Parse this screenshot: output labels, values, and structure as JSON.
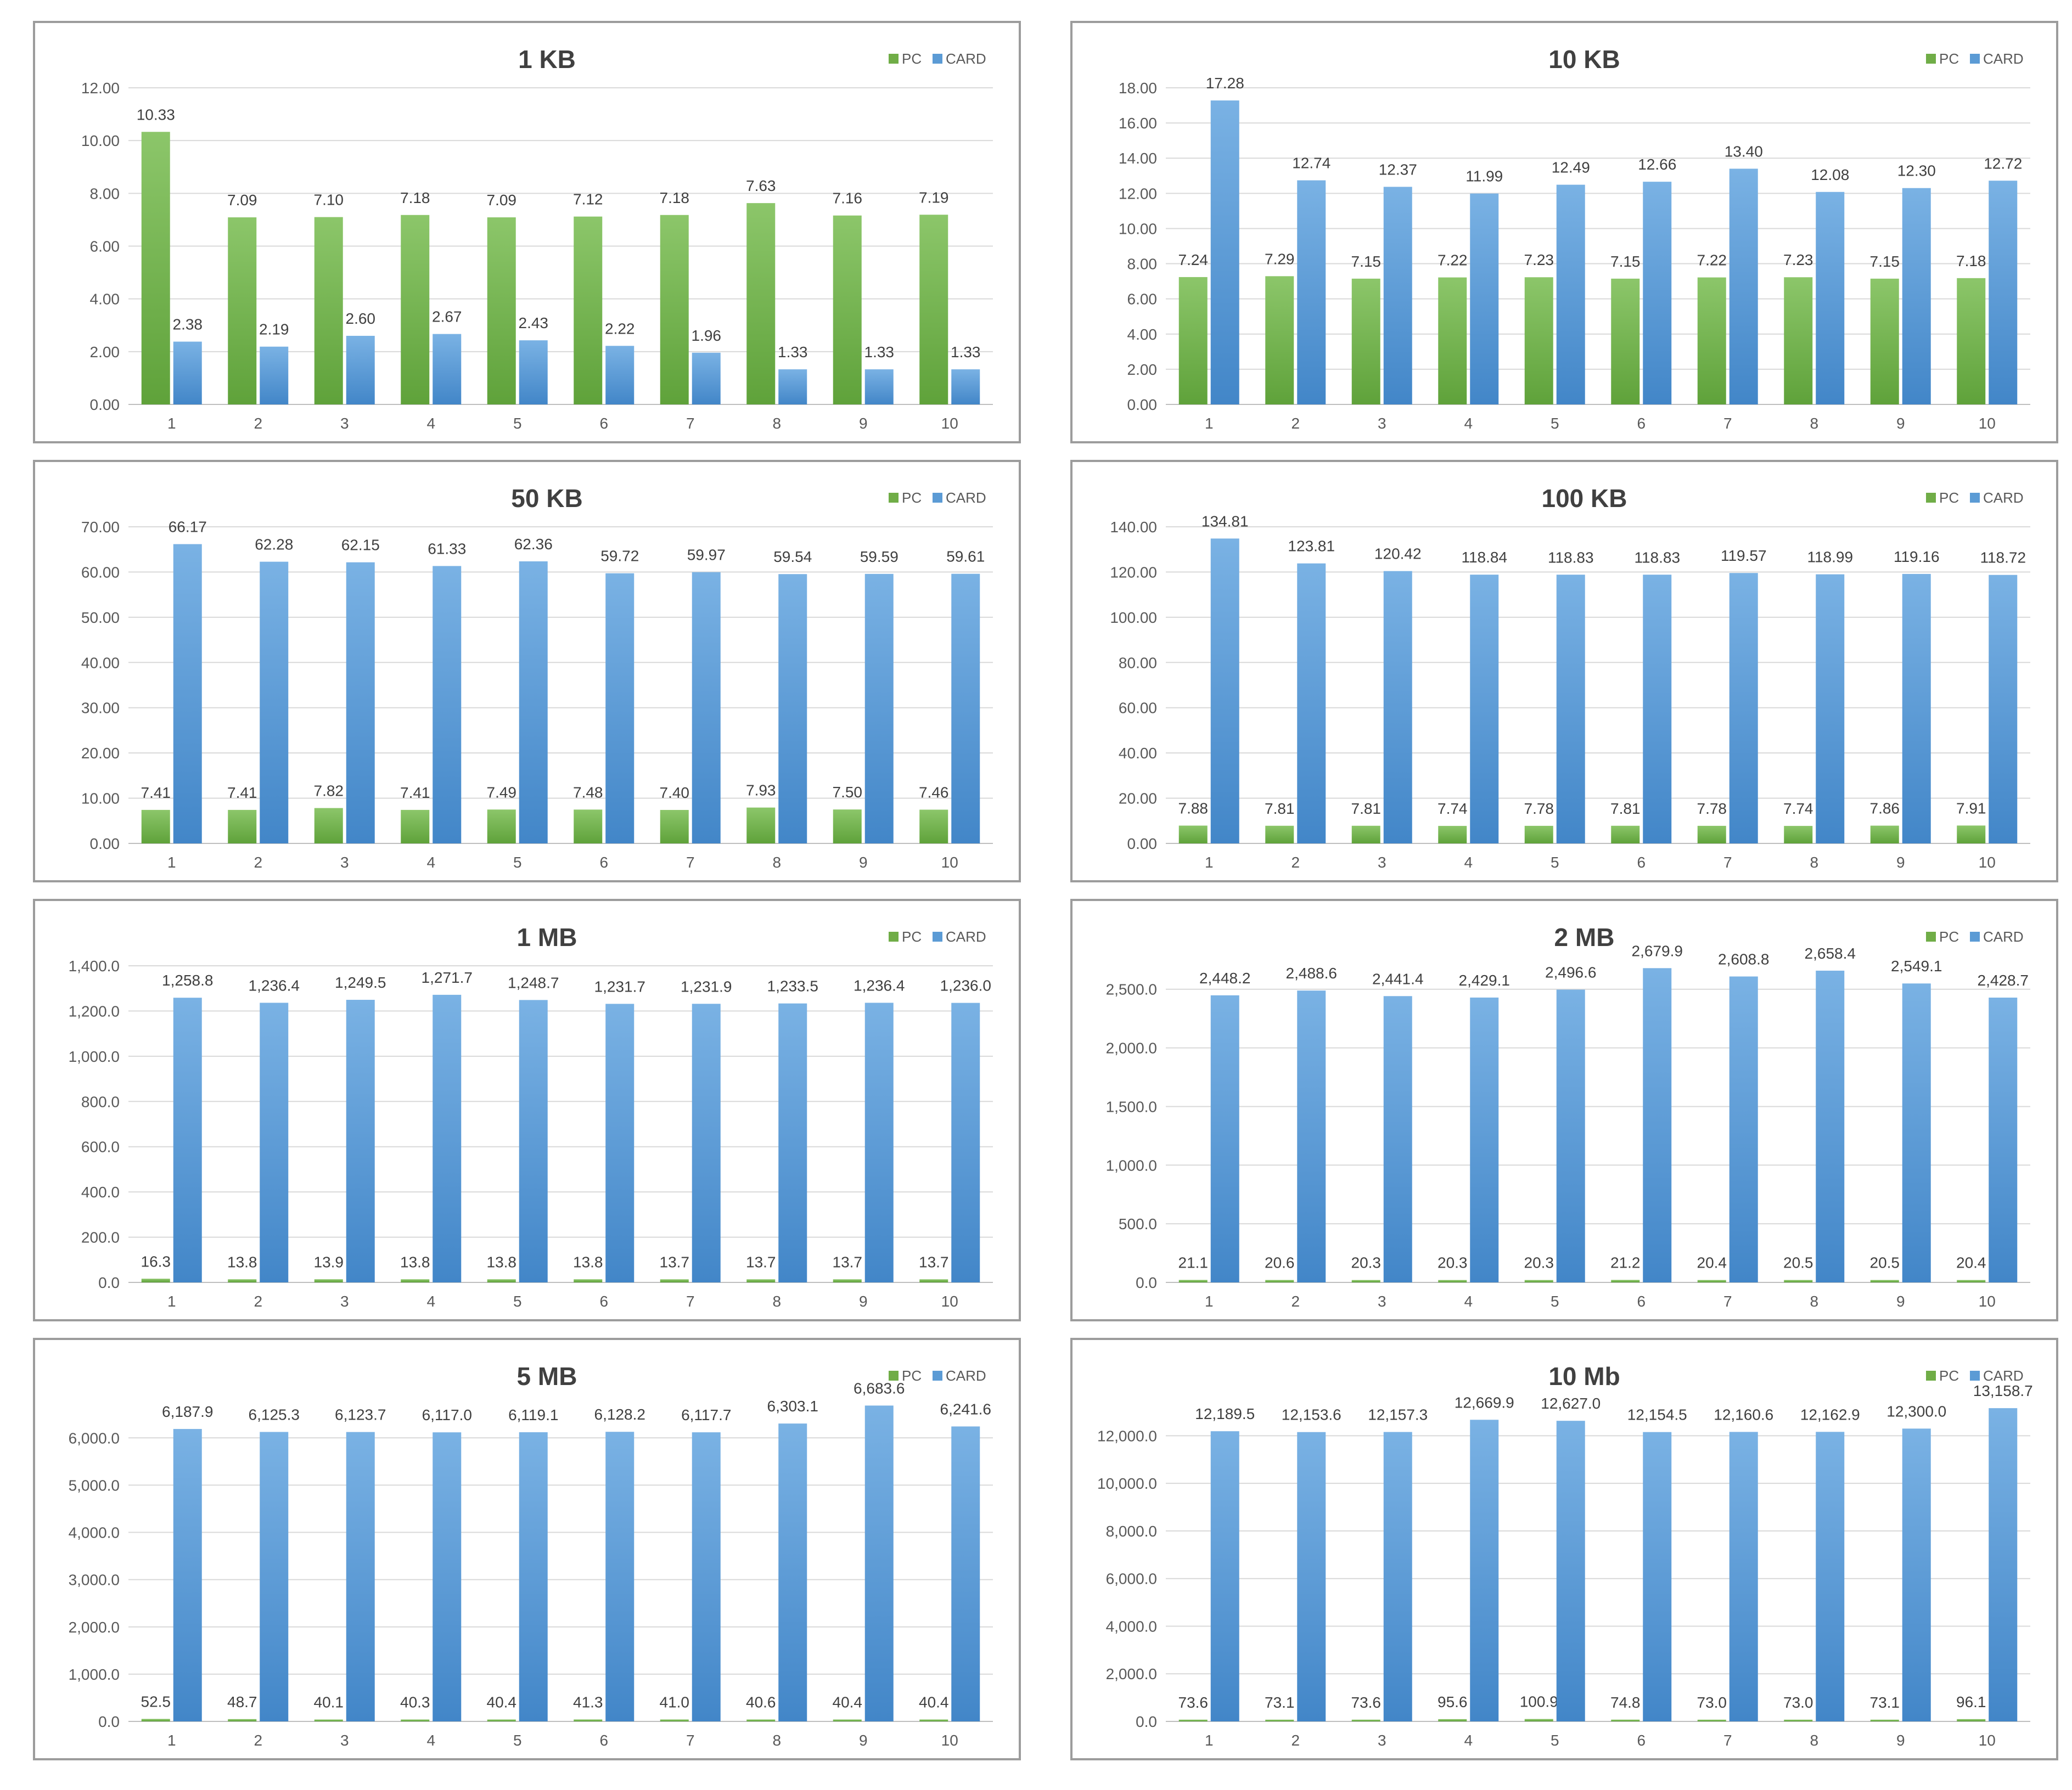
{
  "colors": {
    "pc": "#70AD47",
    "card": "#5B9BD5",
    "grid": "#d9d9d9",
    "axis": "#bfbfbf"
  },
  "chart_data": [
    {
      "type": "bar",
      "title": "1 KB",
      "categories": [
        "1",
        "2",
        "3",
        "4",
        "5",
        "6",
        "7",
        "8",
        "9",
        "10"
      ],
      "ylim": [
        0,
        12
      ],
      "yticks": [
        "0.00",
        "2.00",
        "4.00",
        "6.00",
        "8.00",
        "10.00",
        "12.00"
      ],
      "legend_position": "top-right",
      "series": [
        {
          "name": "PC",
          "values": [
            10.33,
            7.09,
            7.1,
            7.18,
            7.09,
            7.12,
            7.18,
            7.63,
            7.16,
            7.19
          ],
          "labels": [
            "10.33",
            "7.09",
            "7.10",
            "7.18",
            "7.09",
            "7.12",
            "7.18",
            "7.63",
            "7.16",
            "7.19"
          ]
        },
        {
          "name": "CARD",
          "values": [
            2.38,
            2.19,
            2.6,
            2.67,
            2.43,
            2.22,
            1.96,
            1.33,
            1.33,
            1.33
          ],
          "labels": [
            "2.38",
            "2.19",
            "2.60",
            "2.67",
            "2.43",
            "2.22",
            "1.96",
            "1.33",
            "1.33",
            "1.33"
          ]
        }
      ]
    },
    {
      "type": "bar",
      "title": "10 KB",
      "categories": [
        "1",
        "2",
        "3",
        "4",
        "5",
        "6",
        "7",
        "8",
        "9",
        "10"
      ],
      "ylim": [
        0,
        18
      ],
      "yticks": [
        "0.00",
        "2.00",
        "4.00",
        "6.00",
        "8.00",
        "10.00",
        "12.00",
        "14.00",
        "16.00",
        "18.00"
      ],
      "legend_position": "top-right",
      "series": [
        {
          "name": "PC",
          "values": [
            7.24,
            7.29,
            7.15,
            7.22,
            7.23,
            7.15,
            7.22,
            7.23,
            7.15,
            7.18
          ],
          "labels": [
            "7.24",
            "7.29",
            "7.15",
            "7.22",
            "7.23",
            "7.15",
            "7.22",
            "7.23",
            "7.15",
            "7.18"
          ]
        },
        {
          "name": "CARD",
          "values": [
            17.28,
            12.74,
            12.37,
            11.99,
            12.49,
            12.66,
            13.4,
            12.08,
            12.3,
            12.72
          ],
          "labels": [
            "17.28",
            "12.74",
            "12.37",
            "11.99",
            "12.49",
            "12.66",
            "13.40",
            "12.08",
            "12.30",
            "12.72"
          ]
        }
      ]
    },
    {
      "type": "bar",
      "title": "50 KB",
      "categories": [
        "1",
        "2",
        "3",
        "4",
        "5",
        "6",
        "7",
        "8",
        "9",
        "10"
      ],
      "ylim": [
        0,
        70
      ],
      "yticks": [
        "0.00",
        "10.00",
        "20.00",
        "30.00",
        "40.00",
        "50.00",
        "60.00",
        "70.00"
      ],
      "legend_position": "top-right",
      "series": [
        {
          "name": "PC",
          "values": [
            7.41,
            7.41,
            7.82,
            7.41,
            7.49,
            7.48,
            7.4,
            7.93,
            7.5,
            7.46
          ],
          "labels": [
            "7.41",
            "7.41",
            "7.82",
            "7.41",
            "7.49",
            "7.48",
            "7.40",
            "7.93",
            "7.50",
            "7.46"
          ]
        },
        {
          "name": "CARD",
          "values": [
            66.17,
            62.28,
            62.15,
            61.33,
            62.36,
            59.72,
            59.97,
            59.54,
            59.59,
            59.61
          ],
          "labels": [
            "66.17",
            "62.28",
            "62.15",
            "61.33",
            "62.36",
            "59.72",
            "59.97",
            "59.54",
            "59.59",
            "59.61"
          ]
        }
      ]
    },
    {
      "type": "bar",
      "title": "100 KB",
      "categories": [
        "1",
        "2",
        "3",
        "4",
        "5",
        "6",
        "7",
        "8",
        "9",
        "10"
      ],
      "ylim": [
        0,
        140
      ],
      "yticks": [
        "0.00",
        "20.00",
        "40.00",
        "60.00",
        "80.00",
        "100.00",
        "120.00",
        "140.00"
      ],
      "legend_position": "top-right",
      "series": [
        {
          "name": "PC",
          "values": [
            7.88,
            7.81,
            7.81,
            7.74,
            7.78,
            7.81,
            7.78,
            7.74,
            7.86,
            7.91
          ],
          "labels": [
            "7.88",
            "7.81",
            "7.81",
            "7.74",
            "7.78",
            "7.81",
            "7.78",
            "7.74",
            "7.86",
            "7.91"
          ]
        },
        {
          "name": "CARD",
          "values": [
            134.81,
            123.81,
            120.42,
            118.84,
            118.83,
            118.83,
            119.57,
            118.99,
            119.16,
            118.72
          ],
          "labels": [
            "134.81",
            "123.81",
            "120.42",
            "118.84",
            "118.83",
            "118.83",
            "119.57",
            "118.99",
            "119.16",
            "118.72"
          ]
        }
      ]
    },
    {
      "type": "bar",
      "title": "1 MB",
      "categories": [
        "1",
        "2",
        "3",
        "4",
        "5",
        "6",
        "7",
        "8",
        "9",
        "10"
      ],
      "ylim": [
        0,
        1400
      ],
      "yticks": [
        "0.0",
        "200.0",
        "400.0",
        "600.0",
        "800.0",
        "1,000.0",
        "1,200.0",
        "1,400.0"
      ],
      "legend_position": "top-right",
      "series": [
        {
          "name": "PC",
          "values": [
            16.3,
            13.8,
            13.9,
            13.8,
            13.8,
            13.8,
            13.7,
            13.7,
            13.7,
            13.7
          ],
          "labels": [
            "16.3",
            "13.8",
            "13.9",
            "13.8",
            "13.8",
            "13.8",
            "13.7",
            "13.7",
            "13.7",
            "13.7"
          ]
        },
        {
          "name": "CARD",
          "values": [
            1258.8,
            1236.4,
            1249.5,
            1271.7,
            1248.7,
            1231.7,
            1231.9,
            1233.5,
            1236.4,
            1236.0
          ],
          "labels": [
            "1,258.8",
            "1,236.4",
            "1,249.5",
            "1,271.7",
            "1,248.7",
            "1,231.7",
            "1,231.9",
            "1,233.5",
            "1,236.4",
            "1,236.0"
          ]
        }
      ]
    },
    {
      "type": "bar",
      "title": "2 MB",
      "categories": [
        "1",
        "2",
        "3",
        "4",
        "5",
        "6",
        "7",
        "8",
        "9",
        "10"
      ],
      "ylim": [
        0,
        2700
      ],
      "yticks": [
        "0.0",
        "500.0",
        "1,000.0",
        "1,500.0",
        "2,000.0",
        "2,500.0"
      ],
      "ytick_values": [
        0,
        500,
        1000,
        1500,
        2000,
        2500
      ],
      "legend_position": "top-right",
      "series": [
        {
          "name": "PC",
          "values": [
            21.1,
            20.6,
            20.3,
            20.3,
            20.3,
            21.2,
            20.4,
            20.5,
            20.5,
            20.4
          ],
          "labels": [
            "21.1",
            "20.6",
            "20.3",
            "20.3",
            "20.3",
            "21.2",
            "20.4",
            "20.5",
            "20.5",
            "20.4"
          ]
        },
        {
          "name": "CARD",
          "values": [
            2448.2,
            2488.6,
            2441.4,
            2429.1,
            2496.6,
            2679.9,
            2608.8,
            2658.4,
            2549.1,
            2428.7
          ],
          "labels": [
            "2,448.2",
            "2,488.6",
            "2,441.4",
            "2,429.1",
            "2,496.6",
            "2,679.9",
            "2,608.8",
            "2,658.4",
            "2,549.1",
            "2,428.7"
          ]
        }
      ]
    },
    {
      "type": "bar",
      "title": "5 MB",
      "categories": [
        "1",
        "2",
        "3",
        "4",
        "5",
        "6",
        "7",
        "8",
        "9",
        "10"
      ],
      "ylim": [
        0,
        6700
      ],
      "yticks": [
        "0.0",
        "1,000.0",
        "2,000.0",
        "3,000.0",
        "4,000.0",
        "5,000.0",
        "6,000.0"
      ],
      "ytick_values": [
        0,
        1000,
        2000,
        3000,
        4000,
        5000,
        6000
      ],
      "legend_position": "top-right",
      "series": [
        {
          "name": "PC",
          "values": [
            52.5,
            48.7,
            40.1,
            40.3,
            40.4,
            41.3,
            41.0,
            40.6,
            40.4,
            40.4
          ],
          "labels": [
            "52.5",
            "48.7",
            "40.1",
            "40.3",
            "40.4",
            "41.3",
            "41.0",
            "40.6",
            "40.4",
            "40.4"
          ]
        },
        {
          "name": "CARD",
          "values": [
            6187.9,
            6125.3,
            6123.7,
            6117.0,
            6119.1,
            6128.2,
            6117.7,
            6303.1,
            6683.6,
            6241.6
          ],
          "labels": [
            "6,187.9",
            "6,125.3",
            "6,123.7",
            "6,117.0",
            "6,119.1",
            "6,128.2",
            "6,117.7",
            "6,303.1",
            "6,683.6",
            "6,241.6"
          ]
        }
      ]
    },
    {
      "type": "bar",
      "title": "10 Mb",
      "categories": [
        "1",
        "2",
        "3",
        "4",
        "5",
        "6",
        "7",
        "8",
        "9",
        "10"
      ],
      "ylim": [
        0,
        13300
      ],
      "yticks": [
        "0.0",
        "2,000.0",
        "4,000.0",
        "6,000.0",
        "8,000.0",
        "10,000.0",
        "12,000.0"
      ],
      "ytick_values": [
        0,
        2000,
        4000,
        6000,
        8000,
        10000,
        12000
      ],
      "legend_position": "top-right",
      "series": [
        {
          "name": "PC",
          "values": [
            73.6,
            73.1,
            73.6,
            95.6,
            100.9,
            74.8,
            73.0,
            73.0,
            73.1,
            96.1
          ],
          "labels": [
            "73.6",
            "73.1",
            "73.6",
            "95.6",
            "100.9",
            "74.8",
            "73.0",
            "73.0",
            "73.1",
            "96.1"
          ]
        },
        {
          "name": "CARD",
          "values": [
            12189.5,
            12153.6,
            12157.3,
            12669.9,
            12627.0,
            12154.5,
            12160.6,
            12162.9,
            12300.0,
            13158.7
          ],
          "labels": [
            "12,189.5",
            "12,153.6",
            "12,157.3",
            "12,669.9",
            "12,627.0",
            "12,154.5",
            "12,160.6",
            "12,162.9",
            "12,300.0",
            "13,158.7"
          ]
        }
      ]
    }
  ]
}
